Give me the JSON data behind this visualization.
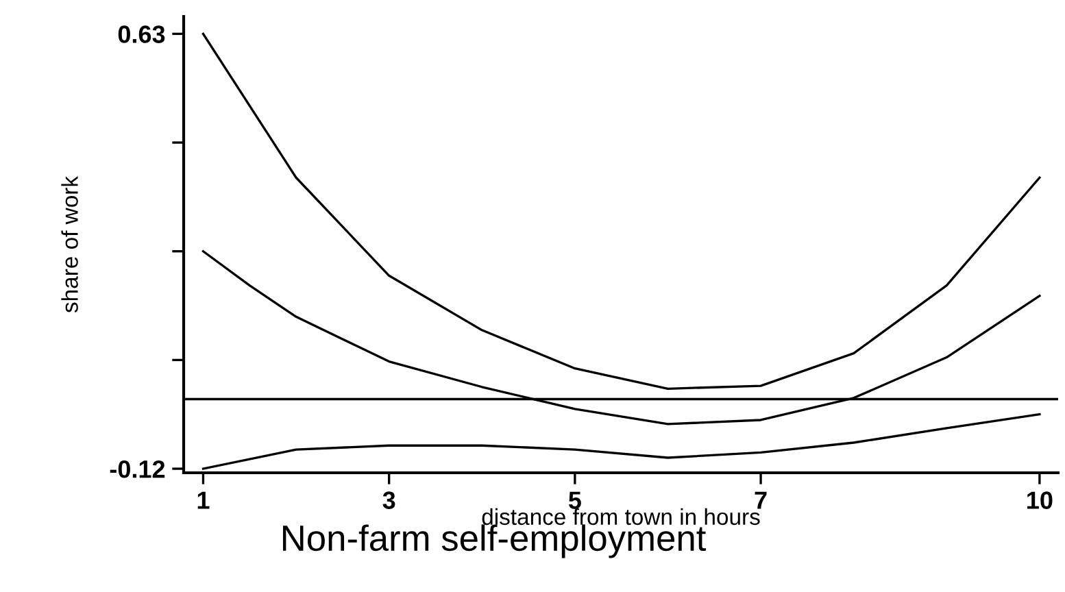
{
  "chart_data": {
    "type": "line",
    "title": "Non-farm self-employment",
    "xlabel": "distance from town in hours",
    "ylabel": "share of work",
    "xlim": [
      0.79,
      10.2
    ],
    "ylim": [
      -0.127,
      0.66
    ],
    "xticks": [
      1,
      3,
      5,
      7,
      10
    ],
    "yticks": [
      -0.12,
      {
        "value": 0.0675,
        "label": null
      },
      {
        "value": 0.255,
        "label": null
      },
      {
        "value": 0.4425,
        "label": null
      },
      0.63
    ],
    "grid": false,
    "legend": false,
    "marker": "none",
    "line_style": "solid",
    "ref_lines": [
      {
        "axis": "y",
        "value": 0,
        "color": "#000000"
      }
    ],
    "series": [
      {
        "color": "#000000",
        "x": [
          1,
          1.5,
          2,
          3,
          4,
          5,
          6,
          7,
          8,
          9,
          10
        ],
        "values": [
          0.63,
          0.506,
          0.382,
          0.213,
          0.119,
          0.053,
          0.018,
          0.023,
          0.079,
          0.196,
          0.382
        ]
      },
      {
        "color": "#000000",
        "x": [
          1,
          1.5,
          2,
          3,
          4,
          5,
          6,
          7,
          8,
          9,
          10
        ],
        "values": [
          0.255,
          0.196,
          0.142,
          0.065,
          0.021,
          -0.017,
          -0.043,
          -0.036,
          0.002,
          0.072,
          0.178
        ]
      },
      {
        "color": "#000000",
        "x": [
          1,
          2,
          3,
          4,
          5,
          6,
          7,
          8,
          9,
          10
        ],
        "values": [
          -0.12,
          -0.087,
          -0.08,
          -0.08,
          -0.087,
          -0.101,
          -0.092,
          -0.075,
          -0.05,
          -0.026
        ]
      }
    ]
  }
}
